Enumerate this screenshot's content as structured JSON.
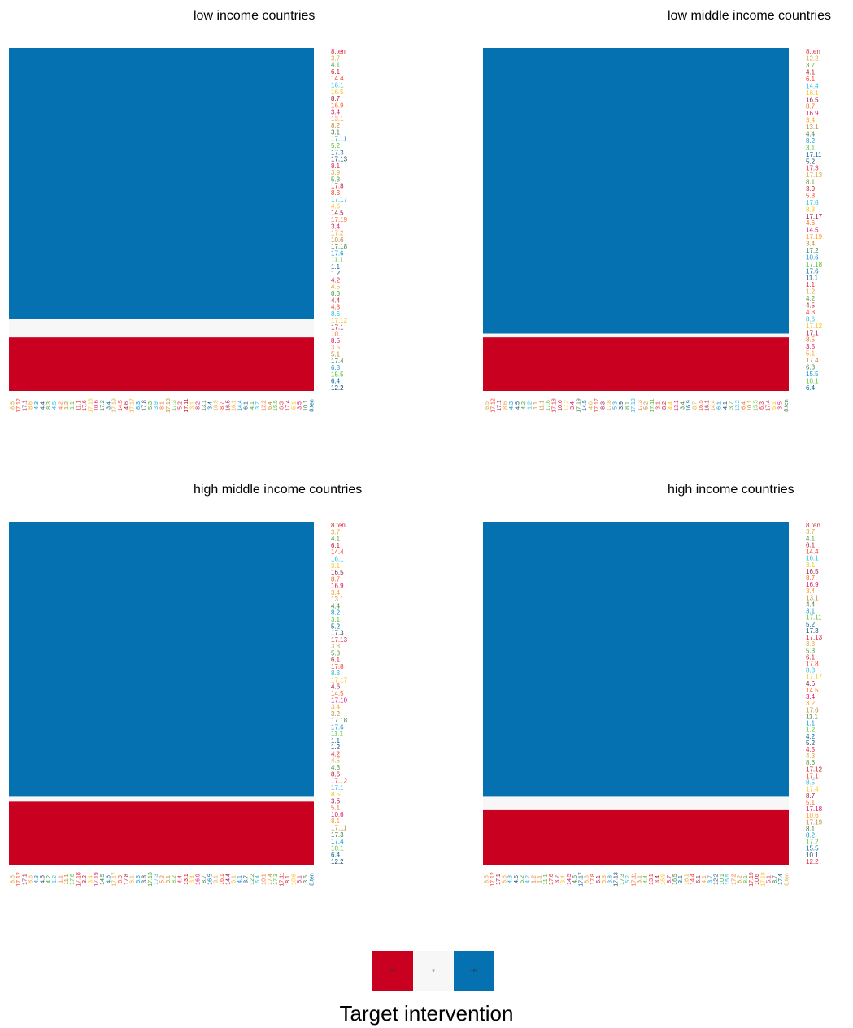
{
  "chart_data": [
    {
      "type": "heatmap",
      "title": "low income countries",
      "bands": [
        {
          "value": "+Inf",
          "from": 0.0,
          "to": 0.791
        },
        {
          "value": "0",
          "from": 0.791,
          "to": 0.844
        },
        {
          "value": "-Inf",
          "from": 0.844,
          "to": 1.0
        }
      ],
      "y_labels": [
        "8.ten",
        "3.7",
        "4.1",
        "6.1",
        "14.4",
        "16.1",
        "16.5",
        "8.7",
        "16.9",
        "3.4",
        "13.1",
        "8.2",
        "3.1",
        "17.11",
        "5.2",
        "17.3",
        "17.13",
        "8.1",
        "3.9",
        "5.3",
        "17.8",
        "8.3",
        "17.17",
        "4.6",
        "14.5",
        "17.19",
        "3.4",
        "17.2",
        "10.6",
        "17.18",
        "17.6",
        "11.1",
        "1.1",
        "1.2",
        "4.2",
        "4.5",
        "8.3",
        "4.4",
        "4.3",
        "8.6",
        "17.12",
        "17.1",
        "10.1",
        "8.5",
        "3.5",
        "5.1",
        "17.4",
        "6.3",
        "15.5",
        "6.4",
        "12.2"
      ],
      "x_labels": [
        "8.5",
        "17.12",
        "17.1",
        "8.6",
        "4.3",
        "4.4",
        "8.3",
        "4.5",
        "4.2",
        "1.2",
        "1.1",
        "11.1",
        "17.6",
        "17.18",
        "10.6",
        "17.2",
        "3.4",
        "17.19",
        "14.5",
        "4.6",
        "17.17",
        "8.3",
        "17.8",
        "5.3",
        "3.9",
        "8.1",
        "17.13",
        "17.3",
        "5.2",
        "17.11",
        "3.1",
        "8.2",
        "13.1",
        "3.4",
        "16.9",
        "8.7",
        "16.5",
        "16.1",
        "14.4",
        "6.1",
        "4.1",
        "3.7",
        "12.2",
        "6.4",
        "15.5",
        "6.3",
        "17.4",
        "5.1",
        "3.5",
        "10.1",
        "8.ten"
      ]
    },
    {
      "type": "heatmap",
      "title": "low middle income countries",
      "bands": [
        {
          "value": "+Inf",
          "from": 0.0,
          "to": 0.833
        },
        {
          "value": "0",
          "from": 0.833,
          "to": 0.844
        },
        {
          "value": "-Inf",
          "from": 0.844,
          "to": 1.0
        }
      ],
      "y_labels": [
        "8.ten",
        "12.2",
        "3.7",
        "4.1",
        "6.1",
        "14.4",
        "16.1",
        "16.5",
        "8.7",
        "16.9",
        "3.4",
        "13.1",
        "4.4",
        "8.2",
        "3.1",
        "17.11",
        "5.2",
        "17.3",
        "17.13",
        "8.1",
        "3.9",
        "5.3",
        "17.8",
        "8.3",
        "17.17",
        "4.6",
        "14.5",
        "17.19",
        "3.4",
        "17.2",
        "10.6",
        "17.18",
        "17.6",
        "11.1",
        "1.1",
        "1.2",
        "4.2",
        "4.5",
        "4.3",
        "8.6",
        "17.12",
        "17.1",
        "8.5",
        "3.5",
        "5.1",
        "17.4",
        "6.3",
        "15.5",
        "10.1",
        "6.4"
      ],
      "x_labels": [
        "8.5",
        "17.12",
        "17.1",
        "8.6",
        "4.3",
        "4.5",
        "4.2",
        "1.2",
        "1.1",
        "11.1",
        "17.6",
        "17.18",
        "10.6",
        "17.2",
        "3.4",
        "17.19",
        "14.5",
        "4.6",
        "17.17",
        "8.3",
        "17.8",
        "5.3",
        "3.9",
        "8.1",
        "17.13",
        "17.3",
        "5.2",
        "17.11",
        "3.1",
        "8.2",
        "4.4",
        "13.1",
        "3.4",
        "16.9",
        "8.7",
        "16.5",
        "16.1",
        "14.4",
        "6.1",
        "4.1",
        "3.7",
        "12.2",
        "6.4",
        "10.1",
        "15.5",
        "6.3",
        "17.4",
        "5.1",
        "3.5",
        "8.ten"
      ]
    },
    {
      "type": "heatmap",
      "title": "high middle income countries",
      "bands": [
        {
          "value": "+Inf",
          "from": 0.0,
          "to": 0.802
        },
        {
          "value": "0",
          "from": 0.802,
          "to": 0.816
        },
        {
          "value": "-Inf",
          "from": 0.816,
          "to": 1.0
        }
      ],
      "y_labels": [
        "8.ten",
        "3.7",
        "4.1",
        "6.1",
        "14.4",
        "16.1",
        "3.1",
        "16.5",
        "8.7",
        "16.9",
        "3.4",
        "13.1",
        "4.4",
        "8.2",
        "3.1",
        "5.2",
        "17.3",
        "17.13",
        "3.8",
        "5.3",
        "6.1",
        "17.8",
        "8.3",
        "17.17",
        "4.6",
        "14.5",
        "17.19",
        "3.4",
        "3.2",
        "17.18",
        "17.6",
        "11.1",
        "1.1",
        "1.2",
        "4.2",
        "4.5",
        "4.3",
        "8.6",
        "17.12",
        "17.1",
        "8.5",
        "3.5",
        "5.1",
        "10.6",
        "8.1",
        "17.11",
        "17.3",
        "17.4",
        "10.1",
        "6.4",
        "12.2"
      ],
      "x_labels": [
        "8.5",
        "17.12",
        "17.1",
        "8.6",
        "4.3",
        "4.5",
        "4.2",
        "1.2",
        "1.1",
        "11.1",
        "17.6",
        "17.18",
        "3.2",
        "3.4",
        "17.19",
        "14.5",
        "4.6",
        "17.17",
        "8.3",
        "17.8",
        "6.1",
        "5.3",
        "3.8",
        "17.13",
        "17.3",
        "5.2",
        "3.1",
        "8.2",
        "4.4",
        "13.1",
        "3.4",
        "16.9",
        "8.7",
        "16.5",
        "3.1",
        "16.1",
        "14.4",
        "6.1",
        "4.1",
        "3.7",
        "12.2",
        "6.4",
        "10.1",
        "17.4",
        "17.3",
        "17.11",
        "8.1",
        "10.6",
        "5.1",
        "3.5",
        "8.ten"
      ]
    },
    {
      "type": "heatmap",
      "title": "high income countries",
      "bands": [
        {
          "value": "+Inf",
          "from": 0.0,
          "to": 0.802
        },
        {
          "value": "0",
          "from": 0.802,
          "to": 0.841
        },
        {
          "value": "-Inf",
          "from": 0.841,
          "to": 1.0
        }
      ],
      "y_labels": [
        "8.ten",
        "3.7",
        "4.1",
        "6.1",
        "14.4",
        "16.1",
        "3.1",
        "16.5",
        "8.7",
        "16.9",
        "3.4",
        "13.1",
        "4.4",
        "3.1",
        "17.11",
        "5.2",
        "17.3",
        "17.13",
        "3.8",
        "5.3",
        "6.1",
        "17.8",
        "8.3",
        "17.17",
        "4.6",
        "14.5",
        "3.4",
        "3.2",
        "17.6",
        "11.1",
        "1.1",
        "1.2",
        "4.2",
        "5.2",
        "4.5",
        "4.3",
        "8.6",
        "17.12",
        "17.1",
        "8.5",
        "17.4",
        "8.7",
        "5.1",
        "17.18",
        "10.6",
        "17.19",
        "8.1",
        "8.2",
        "17.2",
        "15.5",
        "10.1",
        "12.2"
      ],
      "x_labels": [
        "8.5",
        "17.12",
        "17.1",
        "8.6",
        "4.3",
        "4.5",
        "5.2",
        "4.2",
        "1.2",
        "1.1",
        "11.1",
        "17.6",
        "3.2",
        "3.4",
        "14.5",
        "4.6",
        "17.17",
        "8.3",
        "17.8",
        "6.1",
        "5.3",
        "3.8",
        "17.13",
        "17.3",
        "5.2",
        "17.11",
        "3.1",
        "4.4",
        "13.1",
        "3.4",
        "16.9",
        "8.7",
        "16.5",
        "3.1",
        "16.1",
        "14.4",
        "6.1",
        "4.1",
        "3.7",
        "12.2",
        "10.1",
        "15.5",
        "17.2",
        "8.2",
        "8.1",
        "17.19",
        "10.6",
        "17.18",
        "5.1",
        "8.7",
        "17.4",
        "8.ten"
      ]
    }
  ],
  "colors": {
    "neg": "#ca0020",
    "zero": "#f7f7f7",
    "pos": "#0571b0",
    "label_palette": [
      "#e5243b",
      "#dda63a",
      "#4c9f38",
      "#c5192d",
      "#ff3a21",
      "#26bde2",
      "#fcc30b",
      "#a21942",
      "#fd6925",
      "#dd1367",
      "#fd9d24",
      "#bf8b2e",
      "#3f7e44",
      "#0a97d9",
      "#56c02b",
      "#00689d",
      "#19486a"
    ]
  },
  "legend": {
    "title": "Target intervention",
    "keys": [
      {
        "label": "-Inf",
        "color": "#ca0020"
      },
      {
        "label": "0",
        "color": "#f7f7f7"
      },
      {
        "label": "+Inf",
        "color": "#0571b0"
      }
    ]
  }
}
